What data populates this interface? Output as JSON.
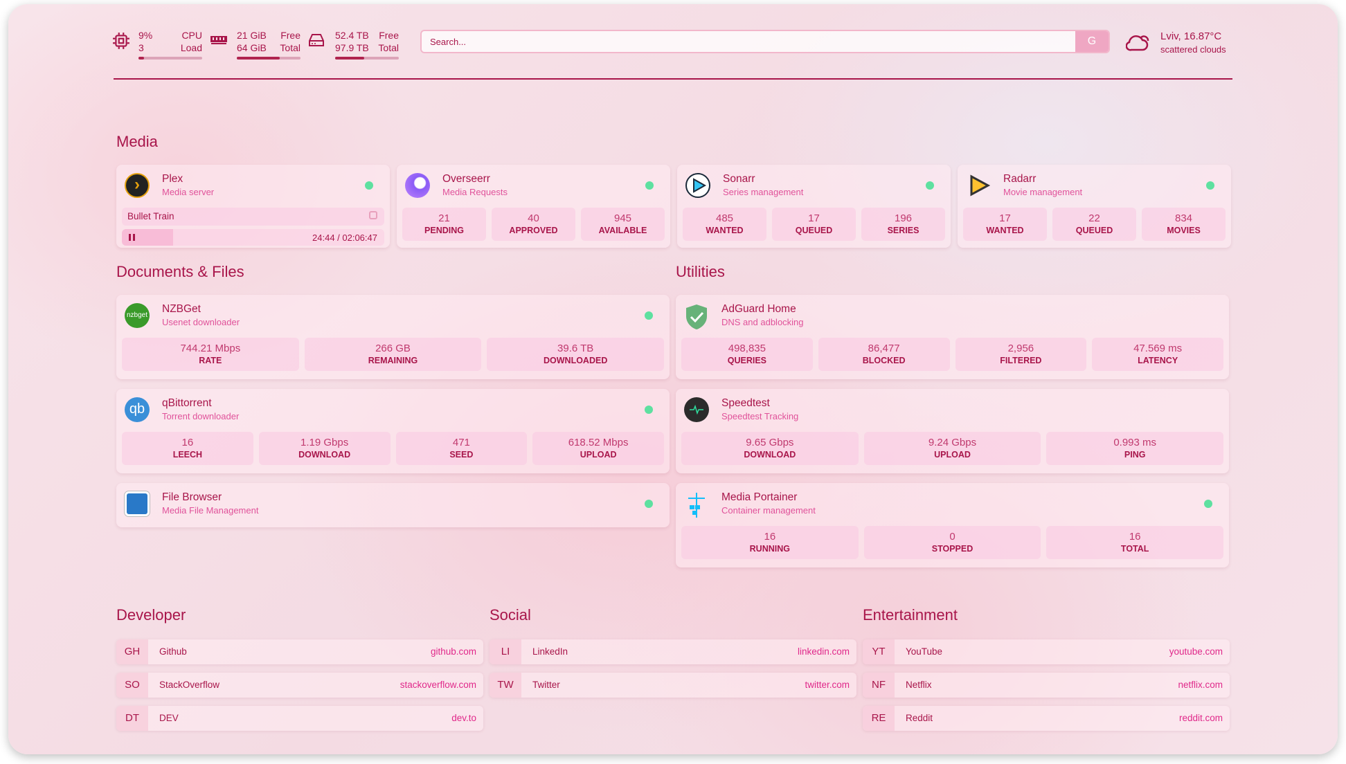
{
  "header": {
    "cpu": {
      "value": "9%",
      "cores": "3",
      "label1": "CPU",
      "label2": "Load",
      "percent": 9,
      "icon": "cpu-icon"
    },
    "memory": {
      "free": "21 GiB",
      "total": "64 GiB",
      "label1": "Free",
      "label2": "Total",
      "percent": 67,
      "icon": "memory-icon"
    },
    "disk": {
      "free": "52.4 TB",
      "total": "97.9 TB",
      "label1": "Free",
      "label2": "Total",
      "percent": 46,
      "icon": "disk-icon"
    },
    "search": {
      "placeholder": "Search...",
      "button": "G"
    },
    "weather": {
      "location_temp": "Lviv, 16.87°C",
      "condition": "scattered clouds",
      "icon": "cloud-icon"
    }
  },
  "sections": {
    "media": "Media",
    "documents": "Documents & Files",
    "utilities": "Utilities",
    "developer": "Developer",
    "social": "Social",
    "entertainment": "Entertainment"
  },
  "media": [
    {
      "title": "Plex",
      "subtitle": "Media server",
      "icon": "plex-icon",
      "status": "online",
      "now_playing": {
        "title": "Bullet Train",
        "time": "24:44 / 02:06:47",
        "progress_percent": 19.5
      }
    },
    {
      "title": "Overseerr",
      "subtitle": "Media Requests",
      "icon": "overseerr-icon",
      "status": "online",
      "stats": [
        {
          "v": "21",
          "l": "PENDING"
        },
        {
          "v": "40",
          "l": "APPROVED"
        },
        {
          "v": "945",
          "l": "AVAILABLE"
        }
      ]
    },
    {
      "title": "Sonarr",
      "subtitle": "Series management",
      "icon": "sonarr-icon",
      "status": "online",
      "stats": [
        {
          "v": "485",
          "l": "WANTED"
        },
        {
          "v": "17",
          "l": "QUEUED"
        },
        {
          "v": "196",
          "l": "SERIES"
        }
      ]
    },
    {
      "title": "Radarr",
      "subtitle": "Movie management",
      "icon": "radarr-icon",
      "status": "online",
      "stats": [
        {
          "v": "17",
          "l": "WANTED"
        },
        {
          "v": "22",
          "l": "QUEUED"
        },
        {
          "v": "834",
          "l": "MOVIES"
        }
      ]
    }
  ],
  "documents": [
    {
      "title": "NZBGet",
      "subtitle": "Usenet downloader",
      "icon": "nzbget-icon",
      "status": "online",
      "stats": [
        {
          "v": "744.21 Mbps",
          "l": "RATE"
        },
        {
          "v": "266 GB",
          "l": "REMAINING"
        },
        {
          "v": "39.6 TB",
          "l": "DOWNLOADED"
        }
      ]
    },
    {
      "title": "qBittorrent",
      "subtitle": "Torrent downloader",
      "icon": "qbittorrent-icon",
      "status": "online",
      "stats": [
        {
          "v": "16",
          "l": "LEECH"
        },
        {
          "v": "1.19 Gbps",
          "l": "DOWNLOAD"
        },
        {
          "v": "471",
          "l": "SEED"
        },
        {
          "v": "618.52 Mbps",
          "l": "UPLOAD"
        }
      ]
    },
    {
      "title": "File Browser",
      "subtitle": "Media File Management",
      "icon": "filebrowser-icon",
      "status": "online"
    }
  ],
  "utilities": [
    {
      "title": "AdGuard Home",
      "subtitle": "DNS and adblocking",
      "icon": "adguard-icon",
      "stats": [
        {
          "v": "498,835",
          "l": "QUERIES"
        },
        {
          "v": "86,477",
          "l": "BLOCKED"
        },
        {
          "v": "2,956",
          "l": "FILTERED"
        },
        {
          "v": "47.569 ms",
          "l": "LATENCY"
        }
      ]
    },
    {
      "title": "Speedtest",
      "subtitle": "Speedtest Tracking",
      "icon": "speedtest-icon",
      "stats": [
        {
          "v": "9.65 Gbps",
          "l": "DOWNLOAD"
        },
        {
          "v": "9.24 Gbps",
          "l": "UPLOAD"
        },
        {
          "v": "0.993 ms",
          "l": "PING"
        }
      ]
    },
    {
      "title": "Media Portainer",
      "subtitle": "Container management",
      "icon": "portainer-icon",
      "status": "online",
      "stats": [
        {
          "v": "16",
          "l": "RUNNING"
        },
        {
          "v": "0",
          "l": "STOPPED"
        },
        {
          "v": "16",
          "l": "TOTAL"
        }
      ]
    }
  ],
  "bookmarks": {
    "developer": [
      {
        "abbr": "GH",
        "name": "Github",
        "url": "github.com"
      },
      {
        "abbr": "SO",
        "name": "StackOverflow",
        "url": "stackoverflow.com"
      },
      {
        "abbr": "DT",
        "name": "DEV",
        "url": "dev.to"
      }
    ],
    "social": [
      {
        "abbr": "LI",
        "name": "LinkedIn",
        "url": "linkedin.com"
      },
      {
        "abbr": "TW",
        "name": "Twitter",
        "url": "twitter.com"
      }
    ],
    "entertainment": [
      {
        "abbr": "YT",
        "name": "YouTube",
        "url": "youtube.com"
      },
      {
        "abbr": "NF",
        "name": "Netflix",
        "url": "netflix.com"
      },
      {
        "abbr": "RE",
        "name": "Reddit",
        "url": "reddit.com"
      }
    ]
  },
  "colors": {
    "accent": "#a8154a",
    "subtitle": "#e0529a",
    "status_online": "#5ee0a0"
  }
}
